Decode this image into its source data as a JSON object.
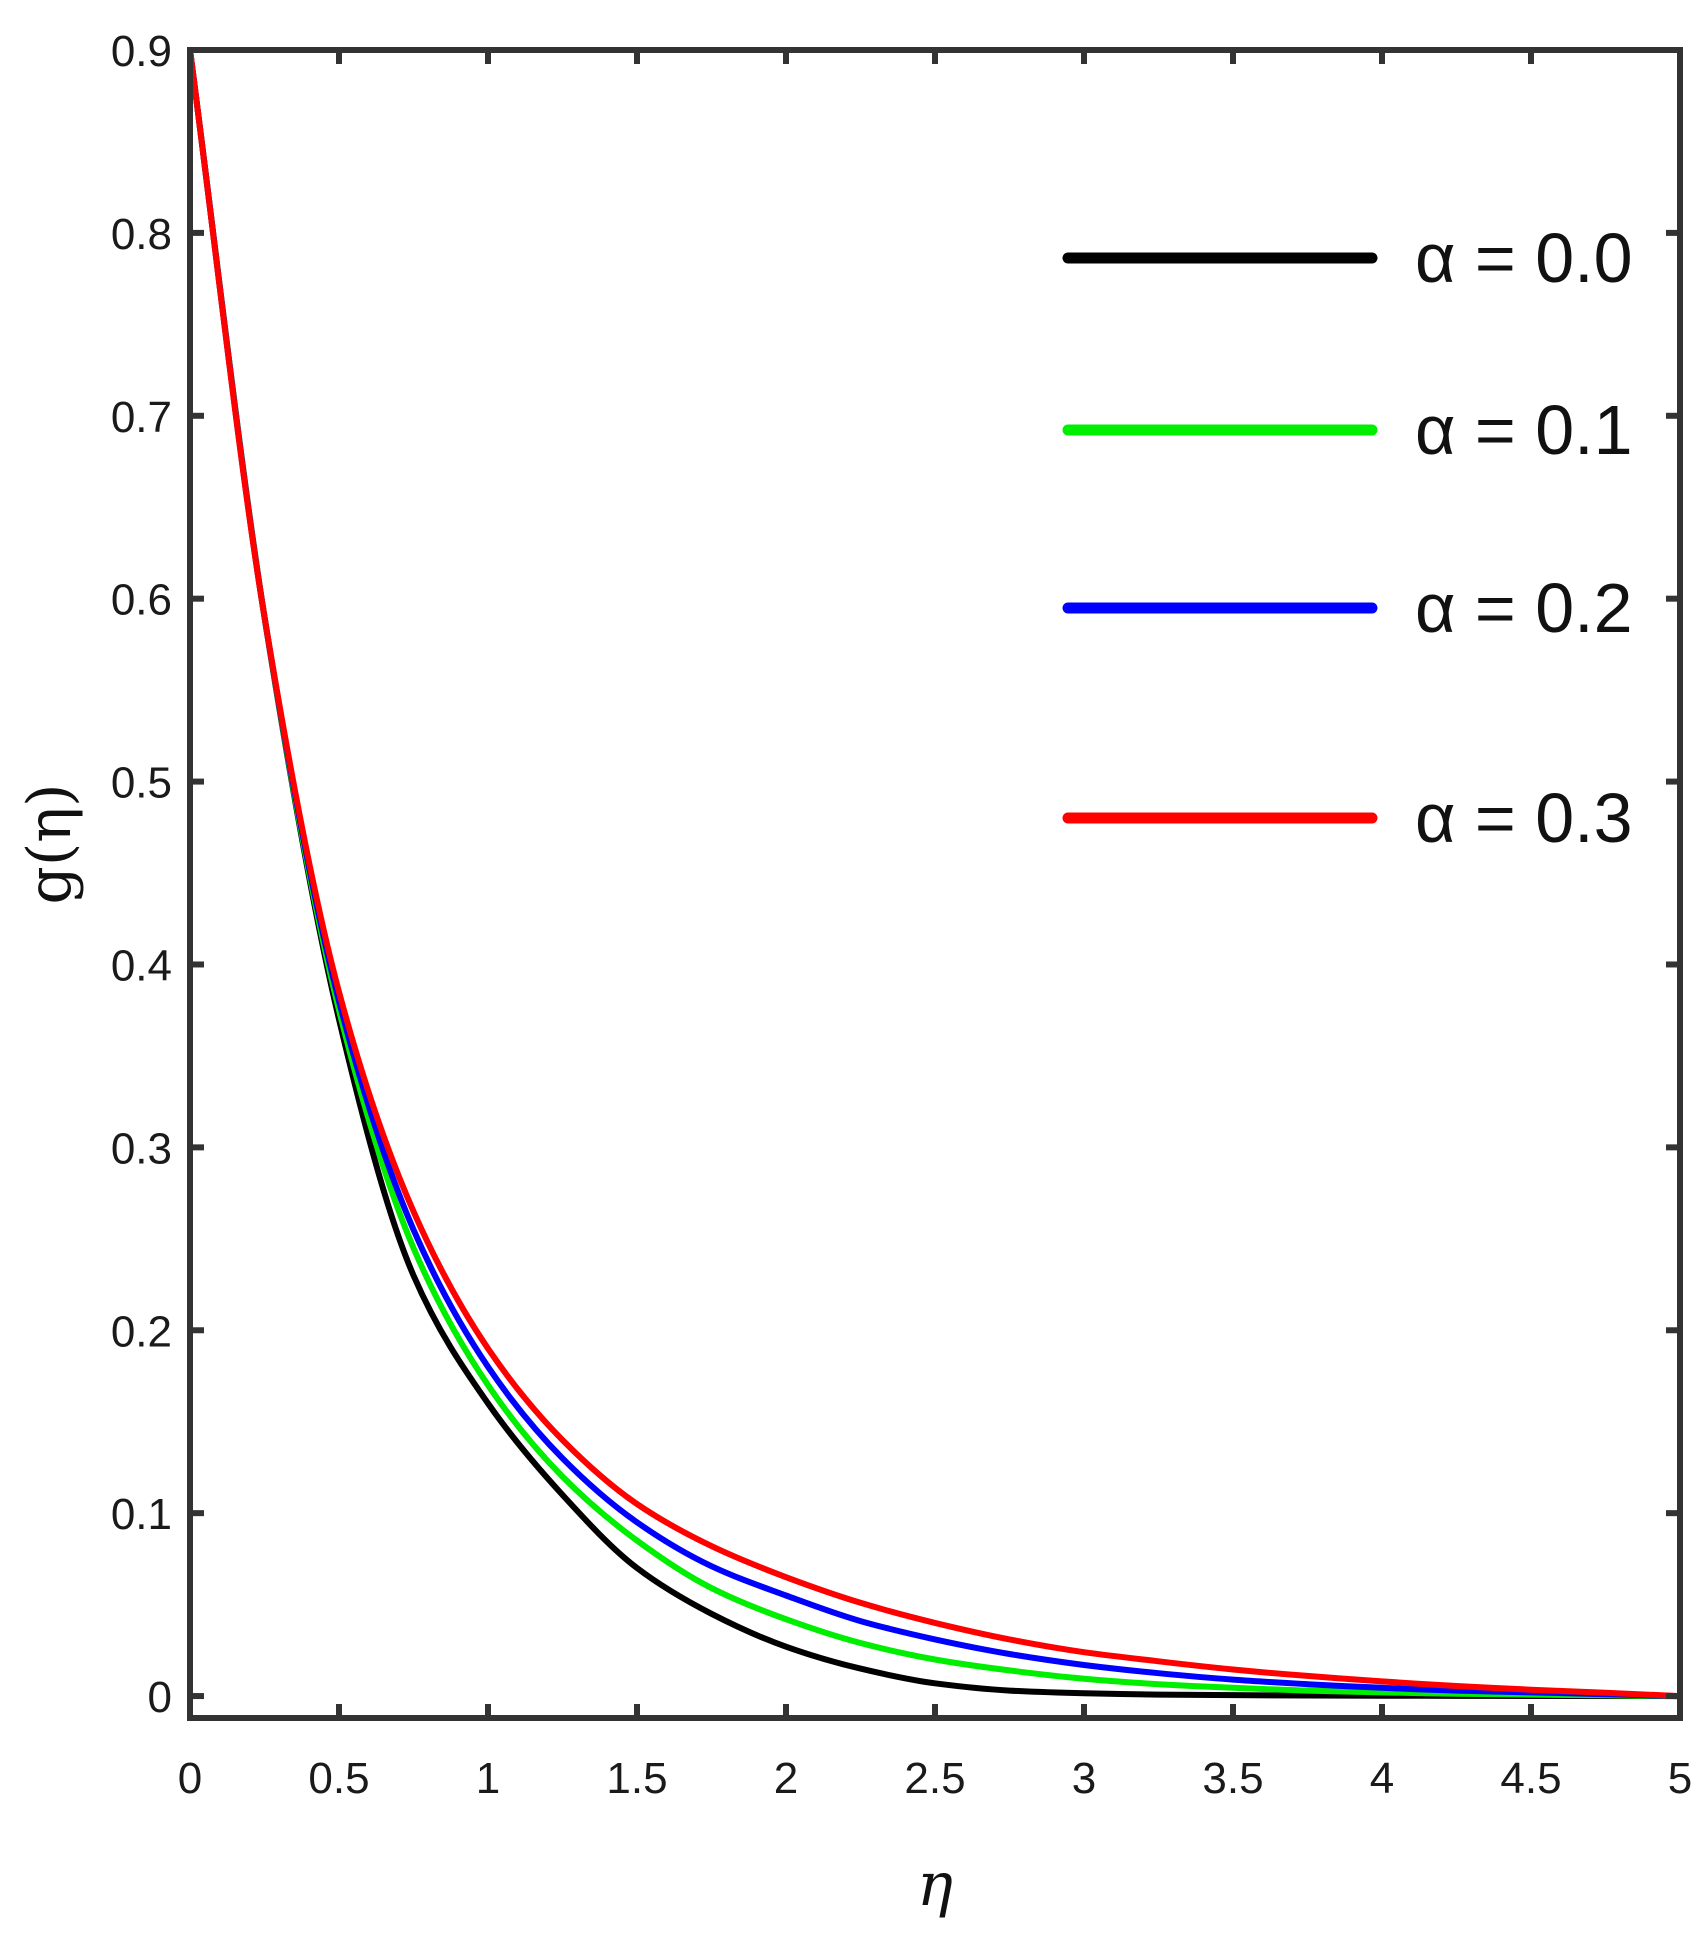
{
  "chart_data": {
    "type": "line",
    "xlabel": "η",
    "ylabel": "g(η)",
    "xlim": [
      0,
      5
    ],
    "ylim": [
      -0.012,
      0.9
    ],
    "xticks": [
      0,
      0.5,
      1,
      1.5,
      2,
      2.5,
      3,
      3.5,
      4,
      4.5,
      5
    ],
    "xtick_labels": [
      "0",
      "0.5",
      "1",
      "1.5",
      "2",
      "2.5",
      "3",
      "3.5",
      "4",
      "4.5",
      "5"
    ],
    "yticks": [
      0,
      0.1,
      0.2,
      0.3,
      0.4,
      0.5,
      0.6,
      0.7,
      0.8,
      0.9
    ],
    "ytick_labels": [
      "0",
      "0.1",
      "0.2",
      "0.3",
      "0.4",
      "0.5",
      "0.6",
      "0.7",
      "0.8",
      "0.9"
    ],
    "grid": false,
    "legend_position": "top-right",
    "x": [
      0,
      0.25,
      0.5,
      0.75,
      1,
      1.25,
      1.5,
      1.75,
      2,
      2.25,
      2.5,
      2.75,
      3,
      3.25,
      3.5,
      3.75,
      4,
      4.25,
      4.5,
      4.75,
      5
    ],
    "series": [
      {
        "name": "α = 0.0",
        "color": "#000000",
        "values": [
          0.9,
          0.59,
          0.37,
          0.23,
          0.16,
          0.11,
          0.07,
          0.045,
          0.027,
          0.015,
          0.007,
          0.003,
          0.0015,
          0.0008,
          0.0005,
          0.0003,
          0.0002,
          0.0001,
          5e-05,
          2e-05,
          0.0
        ]
      },
      {
        "name": "α = 0.1",
        "color": "#00ee00",
        "values": [
          0.9,
          0.59,
          0.375,
          0.245,
          0.17,
          0.12,
          0.085,
          0.059,
          0.042,
          0.029,
          0.02,
          0.014,
          0.0095,
          0.0065,
          0.0045,
          0.003,
          0.002,
          0.0013,
          0.0008,
          0.0004,
          0.0
        ]
      },
      {
        "name": "α = 0.2",
        "color": "#0000ff",
        "values": [
          0.9,
          0.59,
          0.38,
          0.255,
          0.18,
          0.13,
          0.095,
          0.071,
          0.055,
          0.041,
          0.031,
          0.023,
          0.017,
          0.0125,
          0.009,
          0.0065,
          0.0045,
          0.003,
          0.002,
          0.001,
          0.0
        ]
      },
      {
        "name": "α = 0.3",
        "color": "#ff0000",
        "values": [
          0.9,
          0.59,
          0.385,
          0.265,
          0.19,
          0.14,
          0.105,
          0.082,
          0.065,
          0.051,
          0.04,
          0.031,
          0.024,
          0.019,
          0.0145,
          0.011,
          0.008,
          0.0055,
          0.0035,
          0.0018,
          0.0
        ]
      }
    ]
  }
}
